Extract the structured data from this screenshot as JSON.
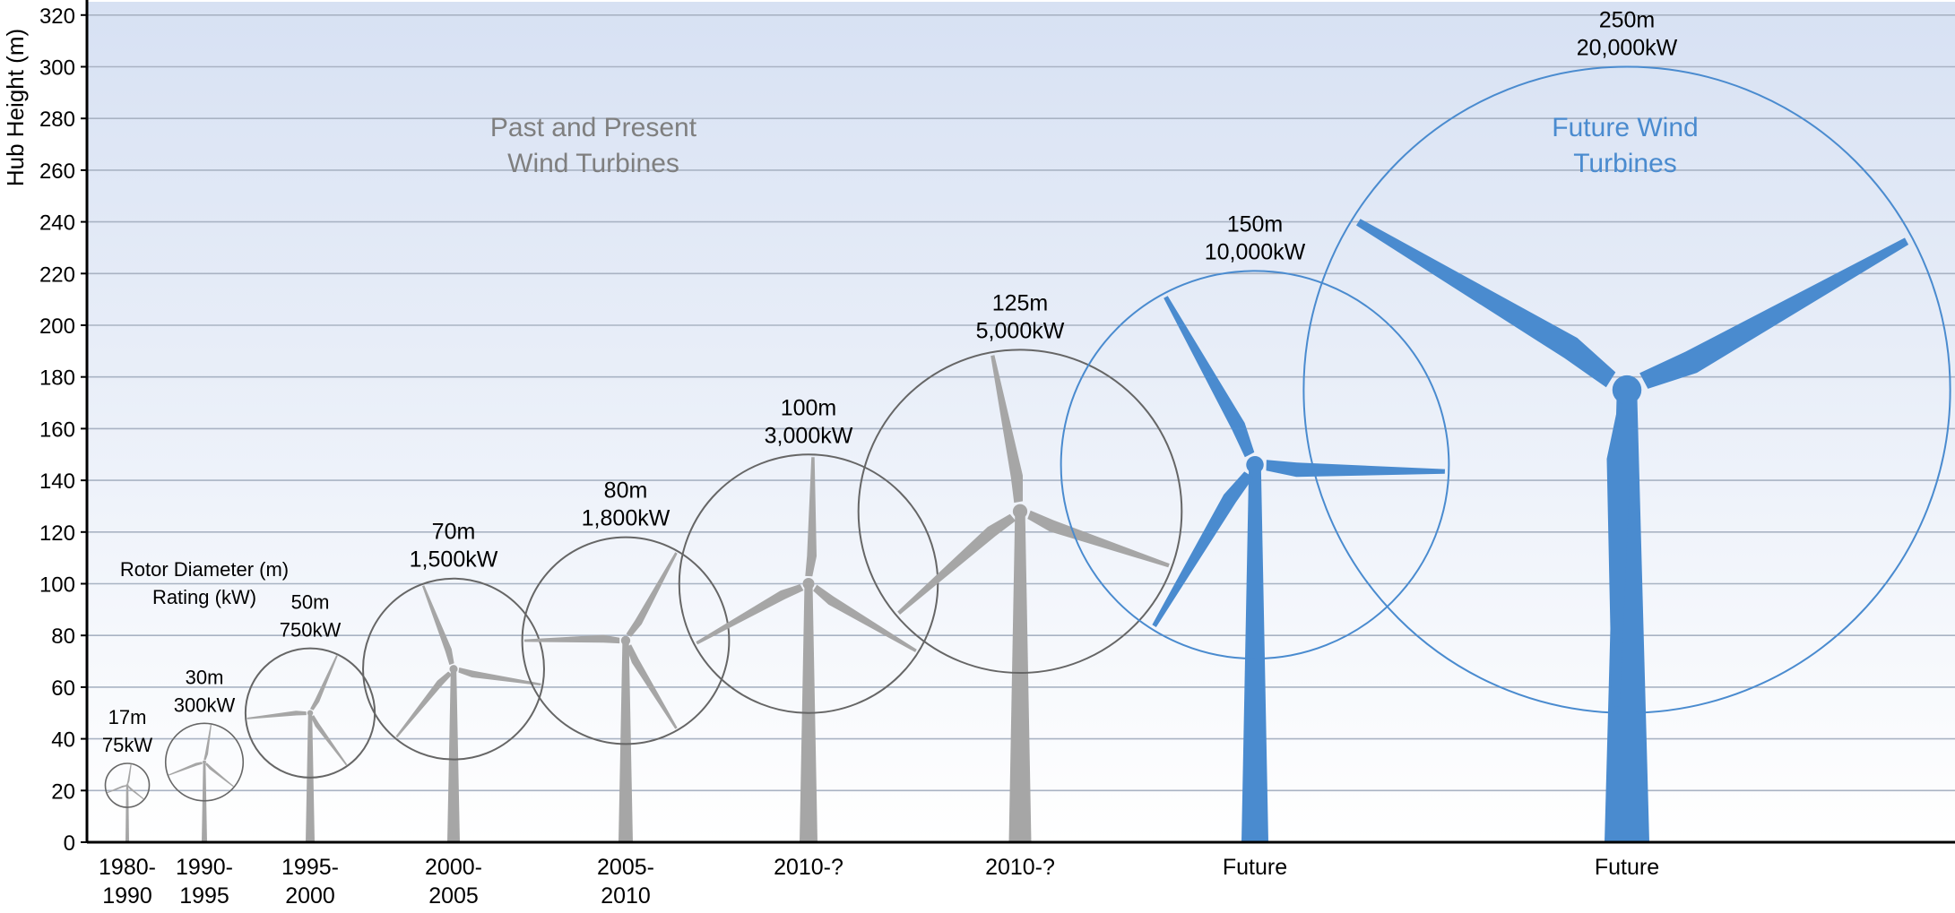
{
  "colors": {
    "past": "#a6a6a6",
    "future": "#4a8bcf",
    "past_circle": "#666666",
    "past_label": "#7f7f7f",
    "future_label": "#4a8bcf",
    "grid": "#a9b3c3",
    "bg_top": "#d7e1f3",
    "bg_bottom": "#ffffff"
  },
  "chart_data": {
    "type": "scatter",
    "ylabel": "Hub Height (m)",
    "ylim": [
      0,
      320
    ],
    "yticks": [
      0,
      20,
      40,
      60,
      80,
      100,
      120,
      140,
      160,
      180,
      200,
      220,
      240,
      260,
      280,
      300,
      320
    ],
    "grid": true,
    "annotations": {
      "past_group": [
        "Past and Present",
        "Wind Turbines"
      ],
      "future_group": [
        "Future Wind",
        "Turbines"
      ],
      "legend_title": [
        "Rotor Diameter (m)",
        "Rating (kW)"
      ]
    },
    "turbines": [
      {
        "period": [
          "1980-",
          "1990"
        ],
        "rotor_diameter_m": 17,
        "diameter_label": "17m",
        "rating_label": "75kW",
        "hub_height_m": 22,
        "group": "past"
      },
      {
        "period": [
          "1990-",
          "1995"
        ],
        "rotor_diameter_m": 30,
        "diameter_label": "30m",
        "rating_label": "300kW",
        "hub_height_m": 31,
        "group": "past"
      },
      {
        "period": [
          "1995-",
          "2000"
        ],
        "rotor_diameter_m": 50,
        "diameter_label": "50m",
        "rating_label": "750kW",
        "hub_height_m": 50,
        "group": "past"
      },
      {
        "period": [
          "2000-",
          "2005"
        ],
        "rotor_diameter_m": 70,
        "diameter_label": "70m",
        "rating_label": "1,500kW",
        "hub_height_m": 67,
        "group": "past"
      },
      {
        "period": [
          "2005-",
          "2010"
        ],
        "rotor_diameter_m": 80,
        "diameter_label": "80m",
        "rating_label": "1,800kW",
        "hub_height_m": 78,
        "group": "past"
      },
      {
        "period": [
          "2010-?"
        ],
        "rotor_diameter_m": 100,
        "diameter_label": "100m",
        "rating_label": "3,000kW",
        "hub_height_m": 100,
        "group": "past"
      },
      {
        "period": [
          "2010-?"
        ],
        "rotor_diameter_m": 125,
        "diameter_label": "125m",
        "rating_label": "5,000kW",
        "hub_height_m": 128,
        "group": "past"
      },
      {
        "period": [
          "Future"
        ],
        "rotor_diameter_m": 150,
        "diameter_label": "150m",
        "rating_label": "10,000kW",
        "hub_height_m": 146,
        "group": "future"
      },
      {
        "period": [
          "Future"
        ],
        "rotor_diameter_m": 250,
        "diameter_label": "250m",
        "rating_label": "20,000kW",
        "hub_height_m": 175,
        "group": "future"
      }
    ]
  }
}
